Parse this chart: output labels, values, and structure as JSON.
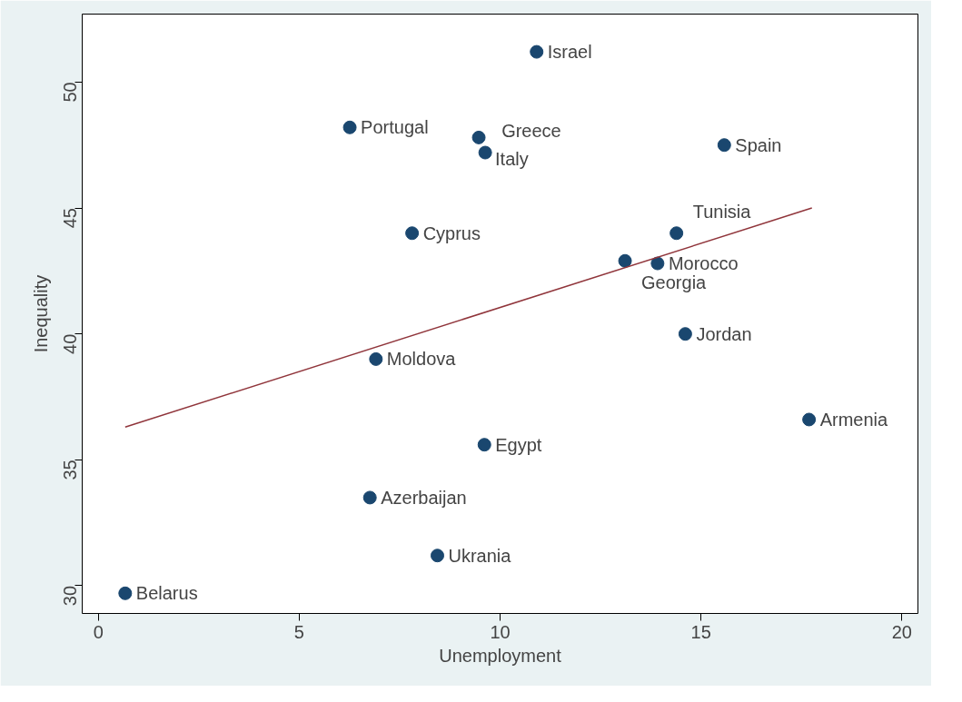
{
  "chart_data": {
    "type": "scatter",
    "xlabel": "Unemployment",
    "ylabel": "Inequality",
    "xlim": [
      -0.4,
      20.4
    ],
    "ylim": [
      28.9,
      52.7
    ],
    "xticks": [
      0,
      5,
      10,
      15,
      20
    ],
    "yticks": [
      30,
      35,
      40,
      45,
      50
    ],
    "grid": false,
    "series": [
      {
        "marker": "circle",
        "color": "#1a476f",
        "x": [
          10.91,
          6.26,
          9.47,
          9.63,
          15.58,
          14.39,
          7.81,
          13.11,
          13.92,
          14.61,
          6.91,
          17.69,
          9.61,
          6.76,
          8.44,
          0.67
        ],
        "values": [
          51.2,
          48.2,
          47.8,
          47.2,
          47.5,
          44.0,
          44.0,
          42.9,
          42.8,
          40.0,
          39.0,
          36.6,
          35.6,
          33.5,
          31.2,
          29.7
        ]
      },
      {
        "type": "line",
        "color": "#90353b",
        "x": [
          0.67,
          17.76
        ],
        "values": [
          36.3,
          45.0
        ]
      }
    ],
    "annotations": [
      {
        "text": "Israel",
        "x": 10.91,
        "y": 51.2
      },
      {
        "text": "Portugal",
        "x": 6.26,
        "y": 48.2
      },
      {
        "text": "Italy",
        "x": 9.47,
        "y": 47.8
      },
      {
        "text": "Greece",
        "x": 9.63,
        "y": 47.2
      },
      {
        "text": "Spain",
        "x": 15.58,
        "y": 47.5
      },
      {
        "text": "Tunisia",
        "x": 14.39,
        "y": 44.0
      },
      {
        "text": "Cyprus",
        "x": 7.81,
        "y": 44.0
      },
      {
        "text": "Georgia",
        "x": 13.11,
        "y": 42.9
      },
      {
        "text": "Morocco",
        "x": 13.92,
        "y": 42.8
      },
      {
        "text": "Jordan",
        "x": 14.61,
        "y": 40.0
      },
      {
        "text": "Moldova",
        "x": 6.91,
        "y": 39.0
      },
      {
        "text": "Armenia",
        "x": 17.69,
        "y": 36.6
      },
      {
        "text": "Egypt",
        "x": 9.61,
        "y": 35.6
      },
      {
        "text": "Azerbaijan",
        "x": 6.76,
        "y": 33.5
      },
      {
        "text": "Ukrania",
        "x": 8.44,
        "y": 31.2
      },
      {
        "text": "Belarus",
        "x": 0.67,
        "y": 29.7
      }
    ]
  }
}
